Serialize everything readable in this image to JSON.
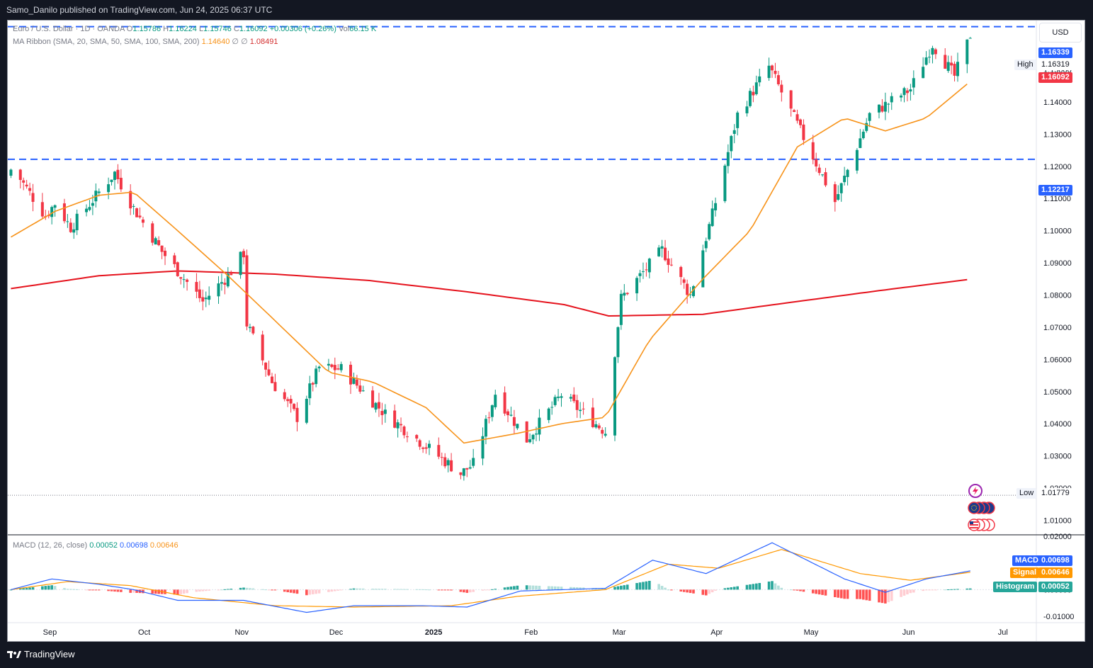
{
  "header": {
    "publisher": "Samo_Danilo published on TradingView.com, Jun 24, 2025 06:37 UTC"
  },
  "footer": {
    "brand": "TradingView"
  },
  "legend": {
    "symbol": "Euro / U.S. Dollar · 1D · OANDA",
    "o_label": "O",
    "o_val": "1.15786",
    "h_label": "H",
    "h_val": "1.16224",
    "l_label": "L",
    "l_val": "1.15746",
    "c_label": "C",
    "c_val": "1.16092",
    "change": "+0.00306 (+0.26%)",
    "vol_label": "Vol",
    "vol_val": "66.15 K",
    "ma_label": "MA Ribbon (SMA, 20, SMA, 50, SMA, 100, SMA, 200)",
    "ma20_val": "1.14640",
    "ma_na1": "∅",
    "ma_na2": "∅",
    "ma200_val": "1.08491",
    "macd_label": "MACD (12, 26, close)",
    "macd_hist": "0.00052",
    "macd_macd": "0.00698",
    "macd_signal": "0.00646"
  },
  "currency": "USD",
  "tags": {
    "top_level": "1.16339",
    "high_label": "High",
    "high_val": "1.16319",
    "last_price": "1.16092",
    "support_level": "1.12217",
    "low_label": "Low",
    "low_val": "1.01779",
    "macd_label": "MACD",
    "macd_val": "0.00698",
    "signal_label": "Signal",
    "signal_val": "0.00646",
    "hist_label": "Histogram",
    "hist_val": "0.00052"
  },
  "colors": {
    "up": "#089981",
    "down": "#f23645",
    "ma20": "#f7931a",
    "ma200": "#e5131d",
    "hline": "#2962ff",
    "macd": "#2962ff",
    "signal": "#ff9800",
    "hist_up_strong": "#26a69a",
    "hist_up_weak": "#b2dfdb",
    "hist_down_strong": "#ff5252",
    "hist_down_weak": "#ffcdd2"
  },
  "icons": [
    "lightning-icon",
    "eu-flag-icon",
    "us-flag-icon"
  ],
  "chart_data": {
    "type": "candlestick",
    "price_ticks": [
      "1.15000",
      "1.14000",
      "1.13000",
      "1.12000",
      "1.11000",
      "1.10000",
      "1.09000",
      "1.08000",
      "1.07000",
      "1.06000",
      "1.05000",
      "1.04000",
      "1.03000",
      "1.02000",
      "1.01000"
    ],
    "macd_ticks": [
      "0.02000",
      "0.00000",
      "-0.01000"
    ],
    "x_labels": [
      "Sep",
      "Oct",
      "Nov",
      "Dec",
      "2025",
      "Feb",
      "Mar",
      "Apr",
      "May",
      "Jun",
      "Jul"
    ],
    "ylim": [
      1.005,
      1.17
    ],
    "horizontal_levels": [
      1.16339,
      1.12217
    ],
    "anchors": [
      [
        "2024-08-23",
        1.119
      ],
      [
        "2024-08-26",
        1.116
      ],
      [
        "2024-09-03",
        1.1045
      ],
      [
        "2024-09-06",
        1.1085
      ],
      [
        "2024-09-11",
        1.101
      ],
      [
        "2024-09-25",
        1.118
      ],
      [
        "2024-10-01",
        1.107
      ],
      [
        "2024-10-10",
        1.0935
      ],
      [
        "2024-10-23",
        1.078
      ],
      [
        "2024-10-31",
        1.086
      ],
      [
        "2024-11-05",
        1.093
      ],
      [
        "2024-11-06",
        1.071
      ],
      [
        "2024-11-14",
        1.053
      ],
      [
        "2024-11-22",
        1.042
      ],
      [
        "2024-11-29",
        1.0575
      ],
      [
        "2024-12-06",
        1.057
      ],
      [
        "2024-12-20",
        1.043
      ],
      [
        "2025-01-13",
        1.0245
      ],
      [
        "2025-01-17",
        1.0275
      ],
      [
        "2025-01-24",
        1.0495
      ],
      [
        "2025-02-03",
        1.035
      ],
      [
        "2025-02-14",
        1.049
      ],
      [
        "2025-02-28",
        1.0375
      ],
      [
        "2025-03-05",
        1.079
      ],
      [
        "2025-03-18",
        1.094
      ],
      [
        "2025-03-27",
        1.08
      ],
      [
        "2025-04-03",
        1.105
      ],
      [
        "2025-04-11",
        1.136
      ],
      [
        "2025-04-21",
        1.151
      ],
      [
        "2025-04-30",
        1.133
      ],
      [
        "2025-05-12",
        1.109
      ],
      [
        "2025-05-23",
        1.136
      ],
      [
        "2025-06-05",
        1.144
      ],
      [
        "2025-06-12",
        1.158
      ],
      [
        "2025-06-19",
        1.148
      ],
      [
        "2025-06-23",
        1.158
      ],
      [
        "2025-06-24",
        1.1609
      ]
    ],
    "ma20_anchors": [
      [
        "2024-08-23",
        1.098
      ],
      [
        "2024-09-06",
        1.106
      ],
      [
        "2024-09-20",
        1.111
      ],
      [
        "2024-10-01",
        1.112
      ],
      [
        "2024-10-15",
        1.1
      ],
      [
        "2024-10-31",
        1.086
      ],
      [
        "2024-11-15",
        1.072
      ],
      [
        "2024-12-02",
        1.056
      ],
      [
        "2024-12-16",
        1.053
      ],
      [
        "2025-01-02",
        1.045
      ],
      [
        "2025-01-14",
        1.034
      ],
      [
        "2025-01-31",
        1.037
      ],
      [
        "2025-02-14",
        1.04
      ],
      [
        "2025-02-28",
        1.042
      ],
      [
        "2025-03-14",
        1.066
      ],
      [
        "2025-03-31",
        1.085
      ],
      [
        "2025-04-15",
        1.1
      ],
      [
        "2025-04-30",
        1.126
      ],
      [
        "2025-05-15",
        1.135
      ],
      [
        "2025-05-28",
        1.131
      ],
      [
        "2025-06-10",
        1.135
      ],
      [
        "2025-06-24",
        1.1464
      ]
    ],
    "ma200_anchors": [
      [
        "2024-08-23",
        1.082
      ],
      [
        "2024-09-20",
        1.086
      ],
      [
        "2024-10-15",
        1.0875
      ],
      [
        "2024-11-15",
        1.0865
      ],
      [
        "2024-12-15",
        1.0845
      ],
      [
        "2025-01-15",
        1.081
      ],
      [
        "2025-02-15",
        1.077
      ],
      [
        "2025-03-01",
        1.0735
      ],
      [
        "2025-03-31",
        1.074
      ],
      [
        "2025-04-30",
        1.078
      ],
      [
        "2025-05-31",
        1.082
      ],
      [
        "2025-06-24",
        1.0849
      ]
    ],
    "macd_anchors": [
      [
        "2024-08-23",
        0.0
      ],
      [
        "2024-09-05",
        0.004
      ],
      [
        "2024-09-20",
        0.002
      ],
      [
        "2024-10-01",
        0.0
      ],
      [
        "2024-10-15",
        -0.004
      ],
      [
        "2024-11-05",
        -0.004
      ],
      [
        "2024-11-25",
        -0.0085
      ],
      [
        "2024-12-10",
        -0.006
      ],
      [
        "2025-01-01",
        -0.006
      ],
      [
        "2025-01-15",
        -0.0065
      ],
      [
        "2025-02-01",
        -0.0005
      ],
      [
        "2025-02-28",
        0.0005
      ],
      [
        "2025-03-15",
        0.011
      ],
      [
        "2025-04-01",
        0.006
      ],
      [
        "2025-04-22",
        0.0175
      ],
      [
        "2025-05-15",
        0.004
      ],
      [
        "2025-05-28",
        -0.001
      ],
      [
        "2025-06-10",
        0.004
      ],
      [
        "2025-06-24",
        0.007
      ]
    ],
    "signal_anchors": [
      [
        "2024-08-23",
        0.0
      ],
      [
        "2024-09-10",
        0.003
      ],
      [
        "2024-09-30",
        0.0015
      ],
      [
        "2024-10-20",
        -0.003
      ],
      [
        "2024-11-15",
        -0.006
      ],
      [
        "2024-12-10",
        -0.0065
      ],
      [
        "2025-01-10",
        -0.006
      ],
      [
        "2025-01-31",
        -0.0025
      ],
      [
        "2025-02-28",
        0.0
      ],
      [
        "2025-03-20",
        0.0095
      ],
      [
        "2025-04-05",
        0.008
      ],
      [
        "2025-04-25",
        0.015
      ],
      [
        "2025-05-20",
        0.006
      ],
      [
        "2025-06-05",
        0.0035
      ],
      [
        "2025-06-24",
        0.0065
      ]
    ]
  }
}
